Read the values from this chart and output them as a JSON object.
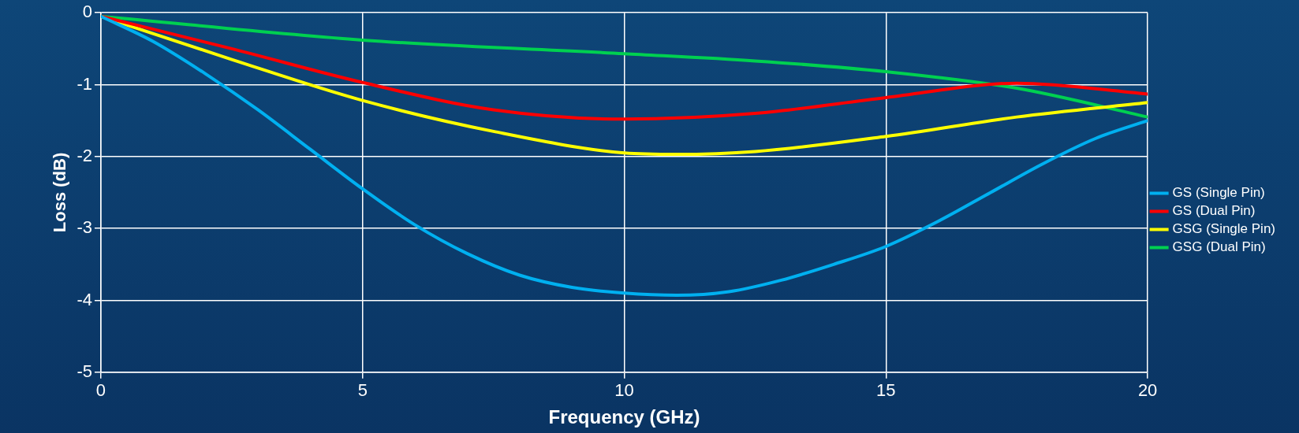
{
  "chart_data": {
    "type": "line",
    "xlabel": "Frequency (GHz)",
    "ylabel": "Loss (dB)",
    "xlim": [
      0,
      20
    ],
    "xticks": [
      0,
      5,
      10,
      15,
      20
    ],
    "ylim": [
      -5,
      0
    ],
    "yticks": [
      -5,
      -4,
      -3,
      -2,
      -1,
      0
    ],
    "grid": true,
    "legend": "right",
    "marker": "none",
    "line_style": "solid",
    "series": [
      {
        "name": "GS (Single Pin)",
        "color": "#00b0f0",
        "x": [
          0,
          1,
          2,
          3,
          4,
          5,
          6,
          7,
          8,
          9,
          10,
          11,
          12,
          13,
          14,
          15,
          16,
          17,
          18,
          19,
          20
        ],
        "values": [
          -0.05,
          -0.4,
          -0.85,
          -1.35,
          -1.9,
          -2.45,
          -2.95,
          -3.35,
          -3.65,
          -3.82,
          -3.9,
          -3.93,
          -3.88,
          -3.72,
          -3.5,
          -3.25,
          -2.9,
          -2.5,
          -2.1,
          -1.75,
          -1.5
        ]
      },
      {
        "name": "GS (Dual Pin)",
        "color": "#ff0000",
        "x": [
          0,
          2.5,
          5,
          7.5,
          10,
          12.5,
          15,
          17.5,
          20
        ],
        "values": [
          -0.05,
          -0.5,
          -0.97,
          -1.35,
          -1.48,
          -1.4,
          -1.18,
          -0.98,
          -1.13
        ]
      },
      {
        "name": "GSG (Single Pin)",
        "color": "#ffff00",
        "x": [
          0,
          2.5,
          5,
          7.5,
          10,
          11,
          12.5,
          15,
          17.5,
          20
        ],
        "values": [
          -0.05,
          -0.65,
          -1.22,
          -1.65,
          -1.95,
          -1.97,
          -1.93,
          -1.72,
          -1.45,
          -1.25
        ]
      },
      {
        "name": "GSG (Dual Pin)",
        "color": "#00d050",
        "x": [
          0,
          5,
          10,
          12.5,
          15,
          17.5,
          20
        ],
        "values": [
          -0.05,
          -0.38,
          -0.57,
          -0.67,
          -0.82,
          -1.05,
          -1.45
        ]
      }
    ]
  }
}
